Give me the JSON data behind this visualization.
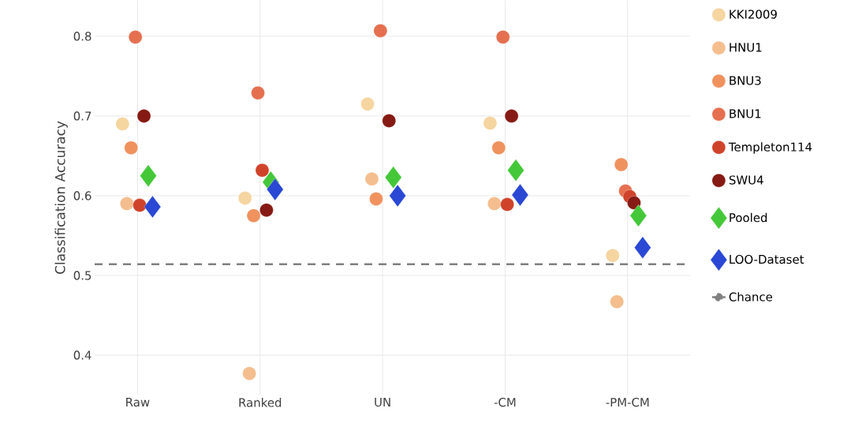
{
  "chart_data": {
    "type": "scatter",
    "ylabel": "Classification Accuracy",
    "categories": [
      "Raw",
      "Ranked",
      "UN",
      "-CM",
      "-PM-CM"
    ],
    "ylim": [
      0.35,
      0.845
    ],
    "yticks": [
      0.4,
      0.5,
      0.6,
      0.7,
      0.8
    ],
    "grid": true,
    "legend": "right",
    "series": [
      {
        "name": "KKI2009",
        "color": "#f5d5a0",
        "marker": "circle",
        "values": [
          0.69,
          0.597,
          0.715,
          0.691,
          0.525
        ]
      },
      {
        "name": "HNU1",
        "color": "#f4be8e",
        "marker": "circle",
        "values": [
          0.59,
          0.377,
          0.621,
          0.59,
          0.467
        ]
      },
      {
        "name": "BNU3",
        "color": "#ef925e",
        "marker": "circle",
        "values": [
          0.66,
          0.575,
          0.596,
          0.66,
          0.639
        ]
      },
      {
        "name": "BNU1",
        "color": "#e57050",
        "marker": "circle",
        "values": [
          0.799,
          0.729,
          0.807,
          0.799,
          0.606
        ]
      },
      {
        "name": "Templeton114",
        "color": "#d0432b",
        "marker": "circle",
        "values": [
          0.588,
          0.632,
          null,
          0.589,
          0.599
        ]
      },
      {
        "name": "SWU4",
        "color": "#861a14",
        "marker": "circle",
        "values": [
          0.7,
          0.582,
          0.694,
          0.7,
          0.591
        ]
      },
      {
        "name": "Pooled",
        "color": "#44c839",
        "marker": "diamond",
        "values": [
          0.625,
          0.617,
          0.623,
          0.632,
          0.575
        ]
      },
      {
        "name": "LOO-Dataset",
        "color": "#2a48d4",
        "marker": "diamond",
        "values": [
          0.586,
          0.608,
          0.6,
          0.601,
          0.535
        ]
      }
    ],
    "ref_lines": [
      {
        "axis": "y",
        "value": 0.514,
        "label": "Chance",
        "color": "#808080",
        "line_style": "dashed"
      }
    ]
  }
}
